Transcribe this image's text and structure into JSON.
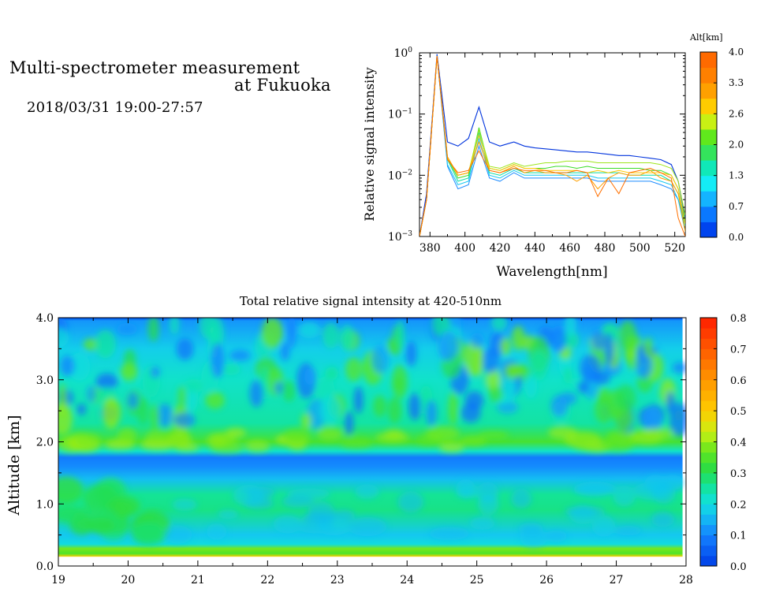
{
  "header": {
    "title_line1": "Multi-spectrometer measurement",
    "title_line2": "at Fukuoka",
    "datetime": "2018/03/31 19:00-27:57"
  },
  "chart_data": [
    {
      "type": "line",
      "title": "",
      "xlabel": "Wavelength[nm]",
      "ylabel": "Relative signal intensity",
      "xlim": [
        374,
        526
      ],
      "ylim": [
        0.001,
        1
      ],
      "yscale": "log",
      "xticks": [
        380,
        400,
        420,
        440,
        460,
        480,
        500,
        520
      ],
      "yticks": [
        {
          "mantissa": "10",
          "exp": "0"
        },
        {
          "mantissa": "10",
          "exp": "−1"
        },
        {
          "mantissa": "10",
          "exp": "−2"
        },
        {
          "mantissa": "10",
          "exp": "−3"
        }
      ],
      "colorbar": {
        "title": "Alt[km]",
        "range": [
          0,
          4
        ],
        "tick_labels": [
          "4.0",
          "3.3",
          "2.6",
          "2.0",
          "1.3",
          "0.7",
          "0.0"
        ],
        "colors": [
          "#0044ee",
          "#0a78ff",
          "#14b4ff",
          "#14ecf6",
          "#10e8b8",
          "#34e45c",
          "#60e81c",
          "#c8f014",
          "#ffcc00",
          "#ffa000",
          "#ff8000",
          "#ff6a00"
        ]
      },
      "x": [
        374,
        378,
        384,
        390,
        396,
        402,
        408,
        414,
        420,
        428,
        434,
        440,
        446,
        452,
        458,
        464,
        470,
        476,
        482,
        488,
        494,
        500,
        506,
        512,
        518,
        522,
        526
      ],
      "series": [
        {
          "color": "#0033dd",
          "values": [
            0.001,
            0.005,
            0.95,
            0.035,
            0.03,
            0.04,
            0.13,
            0.035,
            0.03,
            0.035,
            0.03,
            0.028,
            0.027,
            0.026,
            0.025,
            0.024,
            0.024,
            0.023,
            0.022,
            0.021,
            0.021,
            0.02,
            0.019,
            0.018,
            0.015,
            0.008,
            0.002
          ]
        },
        {
          "color": "#1e8cff",
          "values": [
            0.001,
            0.004,
            0.9,
            0.014,
            0.006,
            0.007,
            0.03,
            0.009,
            0.008,
            0.011,
            0.009,
            0.009,
            0.009,
            0.009,
            0.009,
            0.009,
            0.009,
            0.008,
            0.008,
            0.008,
            0.008,
            0.008,
            0.008,
            0.007,
            0.006,
            0.004,
            0.0015
          ]
        },
        {
          "color": "#14c8f0",
          "values": [
            0.001,
            0.004,
            0.88,
            0.015,
            0.007,
            0.008,
            0.04,
            0.01,
            0.009,
            0.012,
            0.01,
            0.01,
            0.01,
            0.01,
            0.01,
            0.01,
            0.01,
            0.009,
            0.009,
            0.009,
            0.009,
            0.009,
            0.009,
            0.008,
            0.007,
            0.004,
            0.0012
          ]
        },
        {
          "color": "#10dca0",
          "values": [
            0.001,
            0.004,
            0.88,
            0.018,
            0.008,
            0.009,
            0.05,
            0.011,
            0.01,
            0.013,
            0.011,
            0.011,
            0.011,
            0.011,
            0.011,
            0.011,
            0.011,
            0.011,
            0.011,
            0.011,
            0.01,
            0.01,
            0.01,
            0.01,
            0.008,
            0.005,
            0.0015
          ]
        },
        {
          "color": "#3cdc28",
          "values": [
            0.001,
            0.004,
            0.88,
            0.019,
            0.009,
            0.01,
            0.06,
            0.013,
            0.012,
            0.015,
            0.013,
            0.013,
            0.013,
            0.014,
            0.014,
            0.013,
            0.014,
            0.013,
            0.013,
            0.013,
            0.013,
            0.013,
            0.012,
            0.012,
            0.01,
            0.006,
            0.0018
          ]
        },
        {
          "color": "#9ee61c",
          "values": [
            0.001,
            0.004,
            0.88,
            0.02,
            0.01,
            0.011,
            0.055,
            0.014,
            0.013,
            0.016,
            0.014,
            0.015,
            0.016,
            0.016,
            0.017,
            0.017,
            0.017,
            0.016,
            0.016,
            0.016,
            0.016,
            0.016,
            0.016,
            0.015,
            0.013,
            0.008,
            0.0022
          ]
        },
        {
          "color": "#ffc800",
          "values": [
            0.001,
            0.004,
            0.88,
            0.019,
            0.01,
            0.011,
            0.045,
            0.013,
            0.012,
            0.015,
            0.013,
            0.013,
            0.012,
            0.012,
            0.012,
            0.012,
            0.011,
            0.012,
            0.011,
            0.012,
            0.011,
            0.011,
            0.011,
            0.011,
            0.01,
            0.006,
            0.0016
          ]
        },
        {
          "color": "#ffa000",
          "values": [
            0.001,
            0.004,
            0.88,
            0.02,
            0.01,
            0.011,
            0.035,
            0.012,
            0.011,
            0.014,
            0.011,
            0.012,
            0.011,
            0.011,
            0.01,
            0.008,
            0.01,
            0.006,
            0.009,
            0.011,
            0.01,
            0.01,
            0.012,
            0.009,
            0.008,
            0.005,
            0.0012
          ]
        },
        {
          "color": "#ff7000",
          "values": [
            0.001,
            0.004,
            0.88,
            0.018,
            0.011,
            0.012,
            0.025,
            0.012,
            0.011,
            0.013,
            0.012,
            0.012,
            0.012,
            0.011,
            0.011,
            0.012,
            0.011,
            0.0045,
            0.009,
            0.005,
            0.011,
            0.012,
            0.013,
            0.011,
            0.009,
            0.002,
            0.001
          ]
        }
      ]
    },
    {
      "type": "heatmap",
      "title": "Total relative signal intensity at 420-510nm",
      "xlabel": "",
      "ylabel": "Altitude [km]",
      "xlim": [
        19,
        28
      ],
      "ylim": [
        0,
        4
      ],
      "xticks": [
        "19",
        "20",
        "21",
        "22",
        "23",
        "24",
        "25",
        "26",
        "27",
        "28"
      ],
      "yticks": [
        "0.0",
        "1.0",
        "2.0",
        "3.0",
        "4.0"
      ],
      "data_x_range": [
        19,
        27.95
      ],
      "data_alt_range": [
        0.15,
        4.0
      ],
      "colorbar": {
        "range": [
          0,
          0.8
        ],
        "tick_labels": [
          "0.8",
          "0.7",
          "0.6",
          "0.5",
          "0.4",
          "0.3",
          "0.2",
          "0.1",
          "0.0"
        ]
      },
      "altitude_profile": [
        {
          "alt": 0.15,
          "value": 0.5
        },
        {
          "alt": 0.2,
          "value": 0.35
        },
        {
          "alt": 0.28,
          "value": 0.38
        },
        {
          "alt": 0.35,
          "value": 0.2
        },
        {
          "alt": 0.5,
          "value": 0.17
        },
        {
          "alt": 0.9,
          "value": 0.27
        },
        {
          "alt": 1.15,
          "value": 0.26
        },
        {
          "alt": 1.4,
          "value": 0.16
        },
        {
          "alt": 1.6,
          "value": 0.11
        },
        {
          "alt": 1.75,
          "value": 0.09
        },
        {
          "alt": 1.85,
          "value": 0.22
        },
        {
          "alt": 2.0,
          "value": 0.34
        },
        {
          "alt": 2.3,
          "value": 0.25
        },
        {
          "alt": 3.0,
          "value": 0.22
        },
        {
          "alt": 3.5,
          "value": 0.18
        },
        {
          "alt": 3.95,
          "value": 0.12
        },
        {
          "alt": 4.0,
          "value": 0.02
        }
      ]
    }
  ]
}
